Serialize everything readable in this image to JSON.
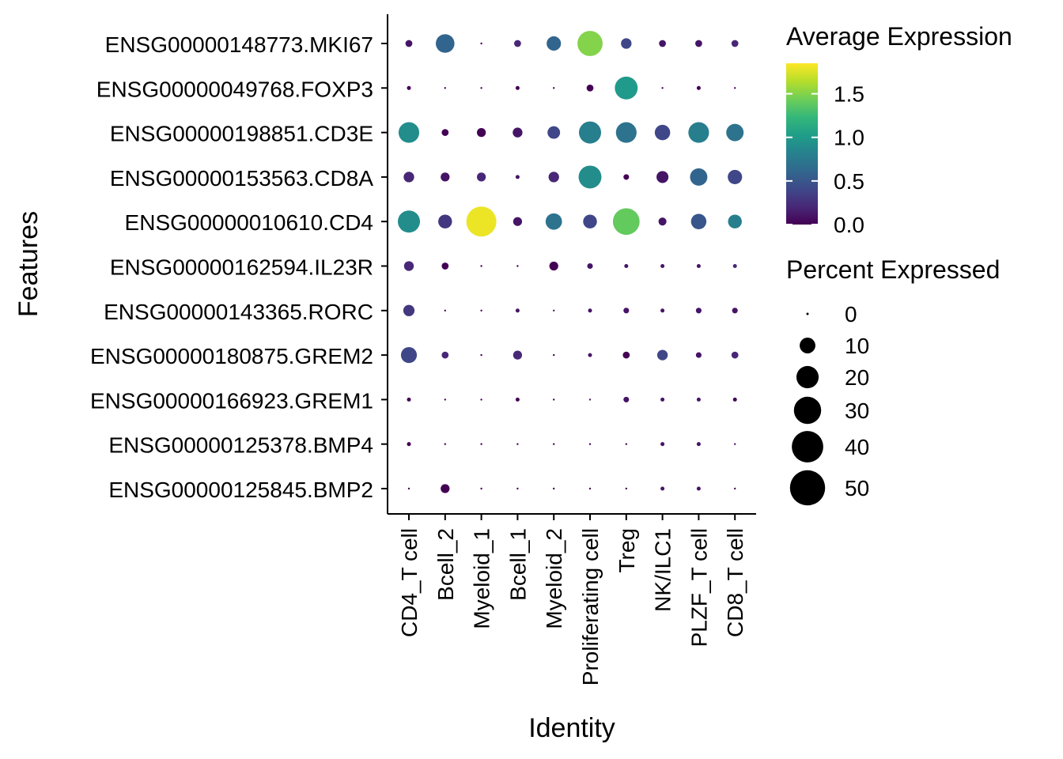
{
  "chart_data": {
    "type": "dot",
    "xlabel": "Identity",
    "ylabel": "Features",
    "categories": [
      "CD4_T cell",
      "Bcell_2",
      "Myeloid_1",
      "Bcell_1",
      "Myeloid_2",
      "Proliferating cell",
      "Treg",
      "NK/ILC1",
      "PLZF_T cell",
      "CD8_T cell"
    ],
    "features": [
      "ENSG00000148773.MKI67",
      "ENSG00000049768.FOXP3",
      "ENSG00000198851.CD3E",
      "ENSG00000153563.CD8A",
      "ENSG00000010610.CD4",
      "ENSG00000162594.IL23R",
      "ENSG00000143365.RORC",
      "ENSG00000180875.GREM2",
      "ENSG00000166923.GREM1",
      "ENSG00000125378.BMP4",
      "ENSG00000125845.BMP2"
    ],
    "avg_expression": [
      [
        0.1,
        0.6,
        0.0,
        0.2,
        0.6,
        1.5,
        0.4,
        0.1,
        0.1,
        0.2
      ],
      [
        0.0,
        0.0,
        0.0,
        0.0,
        0.0,
        0.0,
        1.0,
        0.0,
        0.0,
        0.0
      ],
      [
        0.9,
        0.0,
        0.0,
        0.1,
        0.4,
        0.8,
        0.7,
        0.4,
        0.8,
        0.7
      ],
      [
        0.2,
        0.1,
        0.2,
        0.1,
        0.2,
        0.9,
        0.0,
        0.1,
        0.6,
        0.4
      ],
      [
        0.9,
        0.3,
        1.8,
        0.1,
        0.7,
        0.4,
        1.4,
        0.1,
        0.5,
        0.8
      ],
      [
        0.2,
        0.0,
        0.0,
        0.0,
        0.0,
        0.1,
        0.1,
        0.1,
        0.1,
        0.2
      ],
      [
        0.3,
        0.0,
        0.0,
        0.1,
        0.1,
        0.1,
        0.1,
        0.1,
        0.1,
        0.1
      ],
      [
        0.4,
        0.2,
        0.0,
        0.2,
        0.0,
        0.1,
        0.0,
        0.4,
        0.1,
        0.2
      ],
      [
        0.0,
        0.0,
        0.0,
        0.0,
        0.0,
        0.1,
        0.1,
        0.1,
        0.1,
        0.0
      ],
      [
        0.0,
        0.0,
        0.0,
        0.0,
        0.0,
        0.0,
        0.0,
        0.1,
        0.1,
        0.1
      ],
      [
        0.0,
        0.0,
        0.0,
        0.0,
        0.0,
        0.0,
        0.0,
        0.1,
        0.1,
        0.0
      ]
    ],
    "pct_expressed": [
      [
        3,
        22,
        0,
        3,
        13,
        40,
        7,
        3,
        3,
        3
      ],
      [
        1,
        0,
        0,
        1,
        0,
        3,
        33,
        0,
        1,
        0
      ],
      [
        27,
        3,
        5,
        6,
        10,
        31,
        27,
        15,
        27,
        19
      ],
      [
        7,
        5,
        5,
        1,
        7,
        33,
        2,
        9,
        19,
        13
      ],
      [
        31,
        12,
        57,
        5,
        17,
        12,
        45,
        4,
        15,
        12
      ],
      [
        6,
        3,
        0,
        0,
        5,
        2,
        1,
        1,
        1,
        1
      ],
      [
        8,
        0,
        0,
        1,
        0,
        1,
        2,
        1,
        2,
        2
      ],
      [
        16,
        3,
        0,
        5,
        0,
        1,
        3,
        7,
        2,
        3
      ],
      [
        1,
        0,
        0,
        1,
        0,
        0,
        2,
        1,
        1,
        1
      ],
      [
        1,
        0,
        0,
        0,
        0,
        0,
        0,
        1,
        1,
        0
      ],
      [
        0,
        5,
        0,
        0,
        0,
        0,
        0,
        1,
        1,
        0
      ]
    ],
    "color_legend": {
      "title": "Average Expression",
      "ticks": [
        0.0,
        0.5,
        1.0,
        1.5
      ],
      "tick_labels": [
        "0.0",
        "0.5",
        "1.0",
        "1.5"
      ],
      "range": [
        0,
        1.85
      ]
    },
    "size_legend": {
      "title": "Percent Expressed",
      "values": [
        0,
        10,
        20,
        30,
        40,
        50
      ],
      "labels": [
        "0",
        "10",
        "20",
        "30",
        "40",
        "50"
      ]
    },
    "colormap": [
      "#440154",
      "#482878",
      "#3e4989",
      "#31688e",
      "#26828e",
      "#1f9e89",
      "#35b779",
      "#6ece58",
      "#b5de2b",
      "#fde725"
    ],
    "legend_position": "right",
    "grid": false
  }
}
